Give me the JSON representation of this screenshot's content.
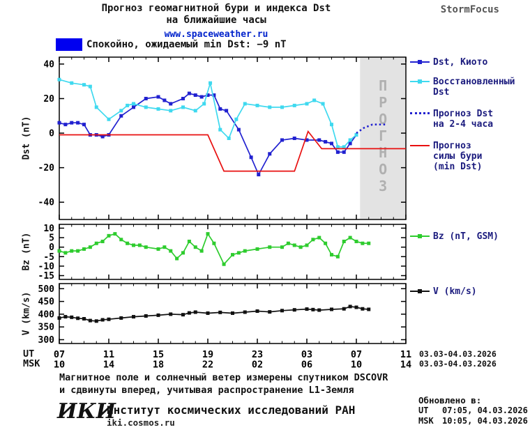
{
  "header": {
    "title_line1": "Прогноз геомагнитной бури и индекса Dst",
    "title_line2": "на ближайшие часы",
    "link": "www.spaceweather.ru",
    "brand": "StormFocus"
  },
  "banner": {
    "label": "Спокойно, ожидаемый min Dst: −9 nT",
    "color": "#0000f0"
  },
  "palette": {
    "accent_blue": "#2121d0",
    "cyan": "#3fd9ef",
    "red": "#e81010",
    "green": "#2ecc2e",
    "black_series": "#111111",
    "legend_text": "#1b1b7e",
    "shade": "#e3e3e3",
    "shade_text": "#b0b0b0"
  },
  "axes": {
    "ut_label": "UT",
    "msk_label": "MSK",
    "ut_date": "03.03-04.03.2026",
    "msk_date": "03.03-04.03.2026"
  },
  "chart_data": [
    {
      "type": "line",
      "title": "Dst index and forecast",
      "ylabel": "Dst (nT)",
      "xlim": [
        7,
        35
      ],
      "ylim": [
        -50,
        44
      ],
      "yticks": [
        40,
        20,
        0,
        -20,
        -40
      ],
      "xticks": {
        "pos": [
          7,
          11,
          15,
          19,
          23,
          27,
          31,
          35
        ]
      },
      "grid": false,
      "legend_position": "right",
      "forecast_region": {
        "start": 31.3,
        "end": 35,
        "label": "ПРОГНОЗ"
      },
      "series": [
        {
          "name": "Dst, Киото",
          "color": "#2121d0",
          "marker": true,
          "x": [
            7,
            7.5,
            8,
            8.5,
            9,
            9.5,
            10,
            10.5,
            11,
            12,
            13,
            14,
            15,
            15.5,
            16,
            17,
            17.5,
            18,
            18.5,
            19,
            19.5,
            20,
            20.5,
            21.5,
            22.5,
            23.1,
            24,
            25,
            26,
            27,
            28,
            28.5,
            29,
            29.5,
            30,
            30.5,
            31
          ],
          "y": [
            6,
            5,
            6,
            6,
            5,
            -1,
            -1,
            -2,
            -1,
            10,
            15,
            20,
            21,
            19,
            17,
            20,
            23,
            22,
            21,
            22,
            22,
            14,
            13,
            2,
            -14,
            -24,
            -12,
            -4,
            -3,
            -4,
            -4,
            -5,
            -6,
            -11,
            -11,
            -6,
            -1
          ]
        },
        {
          "name": "Восстановленный Dst",
          "color": "#3fd9ef",
          "marker": true,
          "x": [
            7,
            8,
            9,
            9.5,
            10,
            11,
            12,
            12.5,
            13,
            14,
            15,
            16,
            17,
            18,
            18.7,
            19.2,
            20,
            20.7,
            21.3,
            22,
            23,
            24,
            25,
            26,
            27,
            27.6,
            28.3,
            29,
            29.5,
            30,
            30.5,
            31
          ],
          "y": [
            31,
            29,
            28,
            27,
            15,
            8,
            13,
            16,
            17,
            15,
            14,
            13,
            15,
            13,
            17,
            29,
            2,
            -3,
            8,
            17,
            16,
            15,
            15,
            16,
            17,
            19,
            17,
            5,
            -8,
            -8,
            -4,
            -1
          ]
        },
        {
          "name": "Прогноз Dst на 2-4 часа",
          "color": "#2121d0",
          "style": "dotted",
          "x": [
            31,
            31.6,
            32.3,
            33,
            33.5
          ],
          "y": [
            0,
            3,
            5,
            5,
            5
          ]
        },
        {
          "name": "Прогноз силы бури (min Dst)",
          "color": "#e81010",
          "x": [
            7,
            19,
            20.3,
            26,
            27.1,
            28.2,
            35
          ],
          "y": [
            -1,
            -1,
            -22,
            -22,
            1,
            -9,
            -9
          ]
        }
      ]
    },
    {
      "type": "line",
      "title": "Bz component of interplanetary magnetic field",
      "ylabel": "Bz (nT)",
      "xlim": [
        7,
        35
      ],
      "ylim": [
        -17,
        12
      ],
      "yticks": [
        10,
        5,
        0,
        -5,
        -10,
        -15
      ],
      "xticks": {
        "pos": [
          7,
          11,
          15,
          19,
          23,
          27,
          31,
          35
        ]
      },
      "grid": false,
      "series": [
        {
          "name": "Bz (nT, GSM)",
          "color": "#2ecc2e",
          "marker": true,
          "x": [
            7,
            7.5,
            8,
            8.5,
            9,
            9.5,
            10,
            10.5,
            11,
            11.5,
            12,
            12.5,
            13,
            13.5,
            14,
            15,
            15.5,
            16,
            16.5,
            17,
            17.5,
            18,
            18.5,
            19,
            19.5,
            20.3,
            21,
            21.5,
            22,
            23,
            24,
            25,
            25.5,
            26,
            26.5,
            27,
            27.5,
            28,
            28.5,
            29,
            29.5,
            30,
            30.5,
            31,
            31.5,
            32
          ],
          "y": [
            -2,
            -3,
            -2,
            -2,
            -1,
            0,
            2,
            3,
            6,
            7,
            4,
            2,
            1,
            1,
            0,
            -1,
            0,
            -2,
            -6,
            -3,
            3,
            0,
            -2,
            7,
            2,
            -9,
            -4,
            -3,
            -2,
            -1,
            0,
            0,
            2,
            1,
            0,
            1,
            4,
            5,
            2,
            -4,
            -5,
            3,
            5,
            3,
            2,
            2
          ]
        }
      ]
    },
    {
      "type": "line",
      "title": "Solar wind speed",
      "ylabel": "V (km/s)",
      "xlim": [
        7,
        35
      ],
      "ylim": [
        285,
        520
      ],
      "yticks": [
        500,
        450,
        400,
        350,
        300
      ],
      "xticks": {
        "pos": [
          7,
          11,
          15,
          19,
          23,
          27,
          31,
          35
        ],
        "ut": [
          "07",
          "11",
          "15",
          "19",
          "23",
          "03",
          "07",
          "11"
        ],
        "msk": [
          "10",
          "14",
          "18",
          "22",
          "02",
          "06",
          "10",
          "14"
        ]
      },
      "grid": false,
      "series": [
        {
          "name": "V (km/s)",
          "color": "#111111",
          "marker": true,
          "x": [
            7,
            7.5,
            8,
            8.5,
            9,
            9.5,
            10,
            10.5,
            11,
            12,
            13,
            14,
            15,
            16,
            17,
            17.5,
            18,
            19,
            20,
            21,
            22,
            23,
            24,
            25,
            26,
            27,
            27.5,
            28,
            29,
            30,
            30.5,
            31,
            31.5,
            32
          ],
          "y": [
            385,
            390,
            388,
            384,
            382,
            375,
            373,
            378,
            380,
            385,
            390,
            393,
            396,
            400,
            398,
            405,
            408,
            404,
            407,
            404,
            408,
            412,
            409,
            414,
            417,
            420,
            418,
            416,
            419,
            421,
            430,
            427,
            421,
            419
          ]
        }
      ]
    }
  ],
  "footer": {
    "note_line1": "Магнитное поле и солнечный ветер измерены спутником DSCOVR",
    "note_line2": "и сдвинуты вперед, учитывая распространение L1-Земля",
    "updated_title": "Обновлено в:",
    "updated_ut_label": "UT",
    "updated_ut_value": "07:05, 04.03.2026",
    "updated_msk_label": "MSK",
    "updated_msk_value": "10:05, 04.03.2026",
    "logo": "ИКИ",
    "institute": "Институт космических исследований РАН",
    "institute_link": "iki.cosmos.ru"
  }
}
